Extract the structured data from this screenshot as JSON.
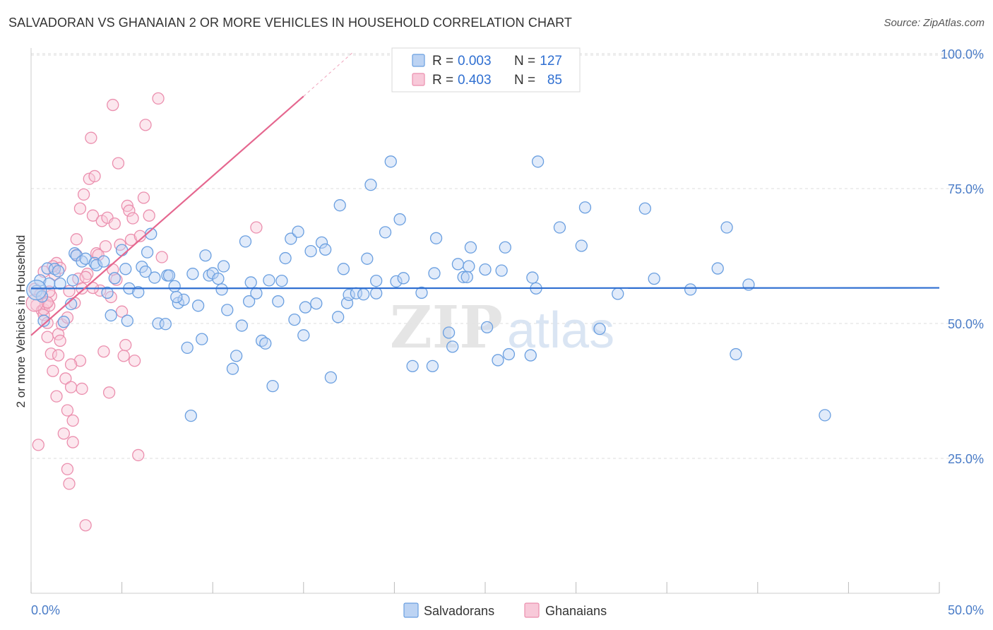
{
  "title": "SALVADORAN VS GHANAIAN 2 OR MORE VEHICLES IN HOUSEHOLD CORRELATION CHART",
  "source": "Source: ZipAtlas.com",
  "watermark": {
    "zip": "ZIP",
    "atlas": "atlas"
  },
  "stats_legend": [
    {
      "r_label": "R = ",
      "r_value": "0.003",
      "n_label": "N = ",
      "n_value": "127"
    },
    {
      "r_label": "R = ",
      "r_value": "0.403",
      "n_label": "N = ",
      "n_value": "85"
    }
  ],
  "colors": {
    "salvadorans": "#6a9fe0",
    "salvadorans_fill": "#bcd3f3",
    "salvadorans_line": "#2f6fd1",
    "ghanaians": "#eb8fae",
    "ghanaians_fill": "#f8c9d9",
    "ghanaians_line": "#e5678f",
    "axis_text": "#4a7cc7",
    "grid": "#dddddd"
  },
  "chart_data": {
    "type": "scatter",
    "title": "SALVADORAN VS GHANAIAN 2 OR MORE VEHICLES IN HOUSEHOLD CORRELATION CHART",
    "xlabel": "",
    "ylabel": "2 or more Vehicles in Household",
    "xlim": [
      0,
      50
    ],
    "ylim": [
      0,
      105
    ],
    "x_tick_labels": [
      "0.0%",
      "50.0%"
    ],
    "y_tick_labels": [
      "25.0%",
      "50.0%",
      "75.0%",
      "100.0%"
    ],
    "y_ticks": [
      25,
      50,
      75,
      100
    ],
    "grid": "horizontal dashed",
    "legend_position": "bottom-center",
    "series": [
      {
        "name": "Salvadorans",
        "r": 0.003,
        "n": 127,
        "trend": {
          "x": [
            0,
            50
          ],
          "y": [
            56.5,
            56.6
          ]
        },
        "points": [
          [
            0.3,
            56
          ],
          [
            0.5,
            58
          ],
          [
            0.6,
            55
          ],
          [
            0.7,
            50.5
          ],
          [
            0.9,
            60.2
          ],
          [
            1.0,
            57.4
          ],
          [
            1.3,
            60.1
          ],
          [
            1.5,
            59.7
          ],
          [
            1.6,
            57.4
          ],
          [
            1.8,
            50.3
          ],
          [
            2.2,
            53.6
          ],
          [
            2.3,
            58.0
          ],
          [
            2.4,
            63
          ],
          [
            2.5,
            62.6
          ],
          [
            2.8,
            61.5
          ],
          [
            3.0,
            62.0
          ],
          [
            3.5,
            61.2
          ],
          [
            3.6,
            60.8
          ],
          [
            4.0,
            61.5
          ],
          [
            4.2,
            55.7
          ],
          [
            4.4,
            51.5
          ],
          [
            4.6,
            58.4
          ],
          [
            5.0,
            63.6
          ],
          [
            5.2,
            60.1
          ],
          [
            5.3,
            50.5
          ],
          [
            5.4,
            56.5
          ],
          [
            5.9,
            55.8
          ],
          [
            6.1,
            60.5
          ],
          [
            6.4,
            63.2
          ],
          [
            6.6,
            66.6
          ],
          [
            6.8,
            58.5
          ],
          [
            7.0,
            50
          ],
          [
            7.4,
            49.9
          ],
          [
            7.5,
            58.9
          ],
          [
            7.6,
            58.9
          ],
          [
            7.9,
            56.9
          ],
          [
            8.1,
            53.8
          ],
          [
            8.4,
            54.4
          ],
          [
            8.6,
            45.5
          ],
          [
            8.8,
            32.9
          ],
          [
            8.9,
            59.2
          ],
          [
            9.2,
            53.3
          ],
          [
            9.4,
            47.1
          ],
          [
            9.6,
            62.6
          ],
          [
            9.8,
            58.9
          ],
          [
            10.0,
            59.3
          ],
          [
            10.3,
            58.3
          ],
          [
            10.5,
            56.3
          ],
          [
            10.6,
            60.6
          ],
          [
            10.8,
            52.5
          ],
          [
            11.1,
            41.6
          ],
          [
            11.3,
            44.0
          ],
          [
            11.6,
            49.6
          ],
          [
            11.8,
            65.2
          ],
          [
            12.0,
            54.1
          ],
          [
            12.1,
            57.6
          ],
          [
            12.4,
            55.6
          ],
          [
            12.7,
            46.8
          ],
          [
            12.9,
            46.3
          ],
          [
            13.1,
            58.0
          ],
          [
            13.3,
            38.4
          ],
          [
            13.6,
            54.1
          ],
          [
            13.8,
            57.9
          ],
          [
            14.0,
            62.1
          ],
          [
            14.3,
            65.7
          ],
          [
            14.5,
            50.7
          ],
          [
            14.7,
            67.0
          ],
          [
            15.0,
            47.8
          ],
          [
            15.1,
            53.0
          ],
          [
            15.4,
            63.4
          ],
          [
            15.7,
            53.7
          ],
          [
            16.0,
            65.0
          ],
          [
            16.2,
            63.7
          ],
          [
            16.5,
            40.0
          ],
          [
            16.9,
            51.2
          ],
          [
            17.0,
            71.9
          ],
          [
            17.2,
            60.1
          ],
          [
            17.4,
            53.8
          ],
          [
            17.5,
            55.3
          ],
          [
            17.9,
            55.6
          ],
          [
            18.3,
            55.4
          ],
          [
            18.5,
            62.0
          ],
          [
            18.7,
            75.7
          ],
          [
            19.0,
            55.6
          ],
          [
            19.5,
            66.9
          ],
          [
            19.8,
            80.0
          ],
          [
            20.1,
            57.8
          ],
          [
            20.3,
            69.3
          ],
          [
            20.5,
            58.4
          ],
          [
            21.0,
            42.1
          ],
          [
            21.5,
            55.7
          ],
          [
            22.1,
            42.1
          ],
          [
            22.2,
            59.3
          ],
          [
            22.3,
            65.8
          ],
          [
            23.0,
            48.3
          ],
          [
            23.2,
            45.7
          ],
          [
            23.5,
            61.0
          ],
          [
            23.8,
            58.6
          ],
          [
            24.0,
            58.6
          ],
          [
            24.1,
            60.6
          ],
          [
            24.2,
            64.1
          ],
          [
            25.0,
            60
          ],
          [
            25.1,
            49.3
          ],
          [
            25.7,
            43.2
          ],
          [
            25.9,
            59.8
          ],
          [
            26.1,
            64.1
          ],
          [
            26.3,
            44.3
          ],
          [
            27.5,
            44.1
          ],
          [
            27.6,
            58.5
          ],
          [
            27.8,
            56.5
          ],
          [
            27.9,
            80.0
          ],
          [
            29.1,
            67.8
          ],
          [
            30.3,
            64.4
          ],
          [
            30.5,
            71.5
          ],
          [
            31.3,
            49.0
          ],
          [
            32.3,
            55.5
          ],
          [
            33.8,
            71.3
          ],
          [
            34.3,
            58.3
          ],
          [
            36.3,
            56.3
          ],
          [
            37.8,
            60.2
          ],
          [
            38.3,
            67.8
          ],
          [
            38.8,
            44.3
          ],
          [
            39.5,
            57.2
          ],
          [
            43.7,
            33.0
          ],
          [
            8.0,
            54.9
          ],
          [
            19.0,
            57.9
          ],
          [
            6.3,
            59.6
          ]
        ]
      },
      {
        "name": "Ghanaians",
        "r": 0.403,
        "n": 85,
        "trend": {
          "x": [
            0,
            15
          ],
          "y": [
            47.8,
            92.1
          ]
        },
        "trend_dashed": {
          "x": [
            15,
            17.7
          ],
          "y": [
            92.1,
            100.2
          ]
        },
        "points": [
          [
            0.2,
            56.4
          ],
          [
            0.3,
            53.4
          ],
          [
            0.4,
            27.5
          ],
          [
            0.5,
            55.4
          ],
          [
            0.6,
            52.4
          ],
          [
            0.7,
            51.6
          ],
          [
            0.7,
            52.6
          ],
          [
            0.8,
            53.6
          ],
          [
            0.9,
            47.5
          ],
          [
            0.9,
            50.1
          ],
          [
            1.0,
            53.3
          ],
          [
            1.1,
            55.1
          ],
          [
            1.1,
            44.4
          ],
          [
            1.2,
            41.2
          ],
          [
            1.3,
            59.1
          ],
          [
            1.4,
            36.5
          ],
          [
            1.4,
            61.2
          ],
          [
            1.5,
            44.1
          ],
          [
            1.6,
            60.3
          ],
          [
            1.7,
            49.8
          ],
          [
            1.8,
            29.6
          ],
          [
            1.9,
            39.8
          ],
          [
            2.0,
            33.9
          ],
          [
            2.0,
            23.0
          ],
          [
            2.1,
            20.3
          ],
          [
            2.1,
            56.0
          ],
          [
            2.2,
            38.2
          ],
          [
            2.3,
            32.0
          ],
          [
            2.3,
            28.0
          ],
          [
            2.4,
            53.8
          ],
          [
            2.5,
            62.7
          ],
          [
            2.5,
            65.6
          ],
          [
            2.6,
            58.3
          ],
          [
            2.7,
            71.3
          ],
          [
            2.7,
            43.1
          ],
          [
            2.8,
            56.5
          ],
          [
            2.9,
            73.9
          ],
          [
            3.0,
            12.6
          ],
          [
            3.1,
            59.2
          ],
          [
            3.2,
            76.8
          ],
          [
            3.3,
            84.4
          ],
          [
            3.4,
            70.0
          ],
          [
            3.5,
            77.3
          ],
          [
            3.6,
            63.0
          ],
          [
            3.7,
            62.7
          ],
          [
            3.8,
            56.1
          ],
          [
            3.9,
            69.0
          ],
          [
            4.0,
            44.8
          ],
          [
            4.1,
            64.3
          ],
          [
            4.2,
            69.6
          ],
          [
            4.3,
            37.2
          ],
          [
            4.4,
            54.9
          ],
          [
            4.5,
            90.5
          ],
          [
            4.6,
            68.5
          ],
          [
            4.7,
            58.1
          ],
          [
            4.8,
            79.7
          ],
          [
            4.9,
            64.6
          ],
          [
            5.0,
            52.2
          ],
          [
            5.1,
            44.0
          ],
          [
            5.2,
            46.0
          ],
          [
            5.3,
            71.8
          ],
          [
            5.4,
            70.9
          ],
          [
            5.5,
            65.5
          ],
          [
            5.6,
            69.5
          ],
          [
            5.7,
            43.1
          ],
          [
            5.9,
            25.6
          ],
          [
            6.0,
            66.2
          ],
          [
            6.2,
            73.3
          ],
          [
            6.3,
            86.8
          ],
          [
            6.5,
            70.0
          ],
          [
            7.0,
            91.7
          ],
          [
            7.2,
            62.3
          ],
          [
            1.0,
            55.9
          ],
          [
            1.2,
            60.6
          ],
          [
            1.5,
            48.0
          ],
          [
            0.9,
            53.9
          ],
          [
            2.0,
            51.1
          ],
          [
            1.6,
            46.8
          ],
          [
            3.0,
            58.6
          ],
          [
            4.5,
            60.0
          ],
          [
            0.7,
            59.6
          ],
          [
            2.2,
            42.4
          ],
          [
            3.4,
            56.6
          ],
          [
            2.8,
            37.9
          ],
          [
            12.4,
            67.8
          ]
        ]
      }
    ]
  }
}
